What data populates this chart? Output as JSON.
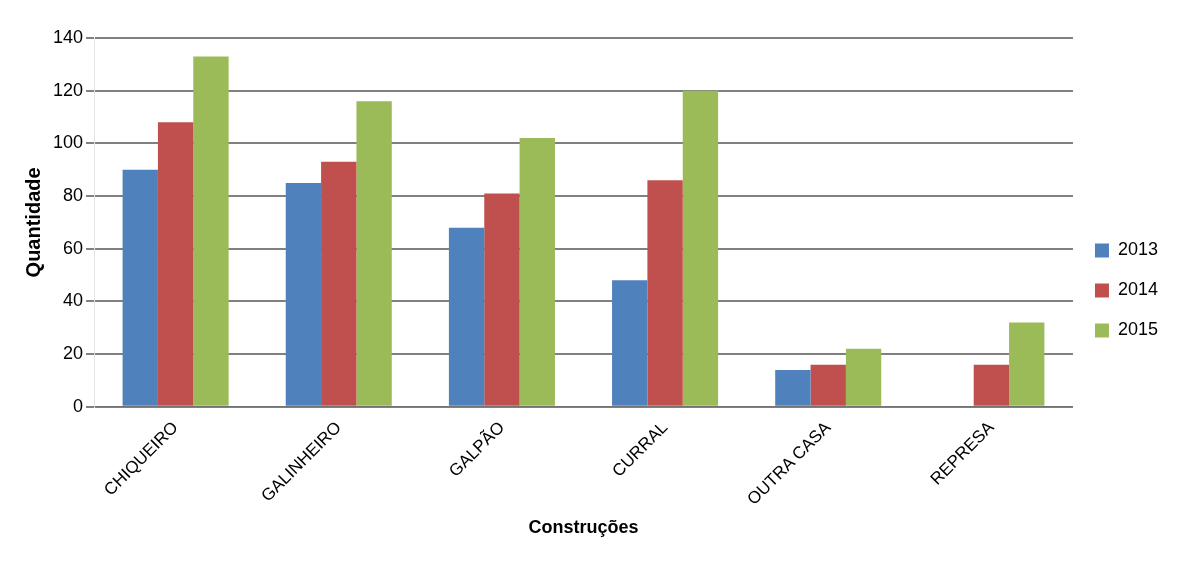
{
  "chart_data": {
    "type": "bar",
    "xlabel": "Construções",
    "ylabel": "Quantidade",
    "categories": [
      "CHIQUEIRO",
      "GALINHEIRO",
      "GALPÃO",
      "CURRAL",
      "OUTRA CASA",
      "REPRESA"
    ],
    "series": [
      {
        "name": "2013",
        "color": "#4f81bd",
        "values": [
          90,
          85,
          68,
          48,
          14,
          0
        ]
      },
      {
        "name": "2014",
        "color": "#c0504d",
        "values": [
          108,
          93,
          81,
          86,
          16,
          16
        ]
      },
      {
        "name": "2015",
        "color": "#9bbb59",
        "values": [
          133,
          116,
          102,
          120,
          22,
          32
        ]
      }
    ],
    "ylim": [
      0,
      140
    ],
    "yticks": [
      0,
      20,
      40,
      60,
      80,
      100,
      120,
      140
    ],
    "grid": "y",
    "legend": "right"
  }
}
